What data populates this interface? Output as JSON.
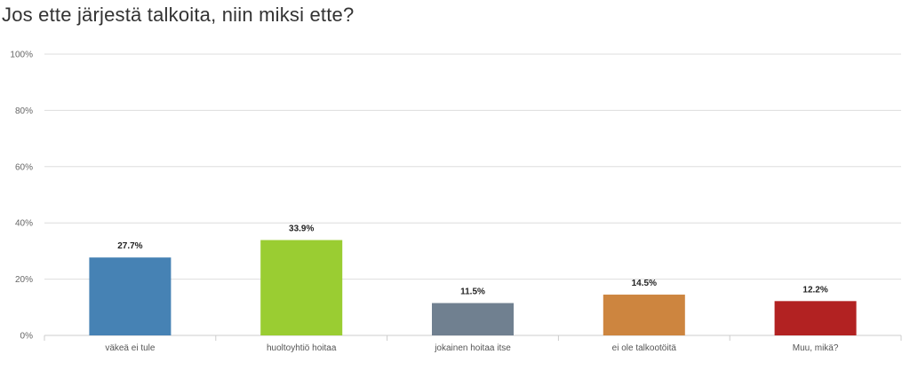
{
  "chart_data": {
    "type": "bar",
    "title": "Jos ette järjestä talkoita, niin miksi ette?",
    "categories": [
      "väkeä ei tule",
      "huoltoyhtiö hoitaa",
      "jokainen hoitaa itse",
      "ei ole talkootöitä",
      "Muu, mikä?"
    ],
    "values": [
      27.7,
      33.9,
      11.5,
      14.5,
      12.2
    ],
    "data_labels": [
      "27.7%",
      "33.9%",
      "11.5%",
      "14.5%",
      "12.2%"
    ],
    "colors": [
      "#4682b4",
      "#9acd32",
      "#708090",
      "#cd853f",
      "#b22222"
    ],
    "ylim": [
      0,
      100
    ],
    "yticks": [
      0,
      20,
      40,
      60,
      80,
      100
    ],
    "ytick_labels": [
      "0%",
      "20%",
      "40%",
      "60%",
      "80%",
      "100%"
    ],
    "xlabel": "",
    "ylabel": "",
    "grid": true,
    "legend": "none"
  }
}
